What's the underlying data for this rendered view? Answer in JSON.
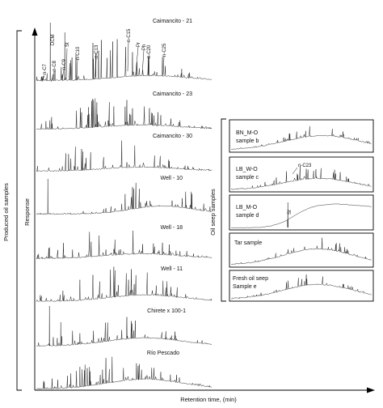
{
  "chart_data": [
    {
      "type": "line",
      "group_label": "Produced oil samples",
      "ylabel": "Response",
      "xlabel": "Retention time, (min)",
      "grid": false,
      "series": [
        {
          "name": "Caimancito - 21",
          "peak_labels": [
            "n-C7",
            "DCM",
            "n-C8",
            "n-C9",
            "St",
            "n-C10",
            "n-C13",
            "n-C15",
            "Pr",
            "Ph",
            "n-C20",
            "n-C25"
          ]
        },
        {
          "name": "Caimancito - 23"
        },
        {
          "name": "Caimancito - 30"
        },
        {
          "name": "Well - 10"
        },
        {
          "name": "Well - 18"
        },
        {
          "name": "Well - 11"
        },
        {
          "name": "Chirete x 100-1"
        },
        {
          "name": "Río Pescado"
        }
      ]
    },
    {
      "type": "line",
      "group_label": "Oil seep samples",
      "grid": false,
      "series": [
        {
          "name": "BN_M-O",
          "subtitle": "sample b"
        },
        {
          "name": "LB_W-O",
          "subtitle": "sample c",
          "peak_labels": [
            "n-C23"
          ]
        },
        {
          "name": "LB_M-O",
          "subtitle": "sample d",
          "peak_labels": [
            "St"
          ]
        },
        {
          "name": "Tar sample",
          "subtitle": ""
        },
        {
          "name": "Fresh oil seep",
          "subtitle": "Sample e"
        }
      ]
    }
  ]
}
